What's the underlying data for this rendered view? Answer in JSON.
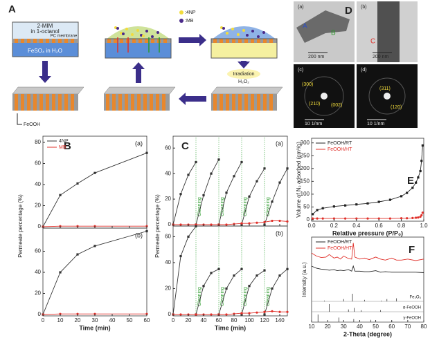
{
  "panel_a": {
    "label": "A",
    "solvent_top": "2-MIM",
    "solvent_top_2": "in 1-octanol",
    "membrane": "PC membrane",
    "solution_bottom": "FeSO₄ in H₂O",
    "legend_4np": ":4NP",
    "legend_mb": ":MB",
    "irradiation": "Irradiation",
    "oxidant": "H₂O₂",
    "product": "FeOOH"
  },
  "panel_d": {
    "label": "D",
    "images": [
      {
        "tag": "(a)",
        "scale": "200 nm",
        "marks": [
          "A",
          "B"
        ]
      },
      {
        "tag": "(b)",
        "scale": "200 nm",
        "marks": [
          "C"
        ]
      },
      {
        "tag": "(c)",
        "scale": "10 1/nm",
        "marks": [
          "(300)",
          "(210)",
          "(002)"
        ]
      },
      {
        "tag": "(d)",
        "scale": "10 1/nm",
        "marks": [
          "(311)",
          "(120)"
        ]
      }
    ]
  },
  "chart_data": [
    {
      "type": "line",
      "label": "B",
      "xlabel": "Time (min)",
      "ylabel": "Permeate percentage (%)",
      "legend": "top-left",
      "x": [
        0,
        10,
        20,
        30,
        60
      ],
      "xlim": [
        0,
        60
      ],
      "xticks": [
        0,
        10,
        20,
        30,
        40,
        50,
        60
      ],
      "subplots": [
        {
          "label": "(a)",
          "ylim": [
            0,
            80
          ],
          "yticks": [
            0,
            20,
            40,
            60,
            80
          ],
          "series": [
            {
              "name": "4NP",
              "color": "#333333",
              "values": [
                0,
                30,
                41,
                51,
                70
              ]
            },
            {
              "name": "MB",
              "color": "#e0302a",
              "values": [
                0,
                0.5,
                0.5,
                0.5,
                0.5
              ]
            }
          ]
        },
        {
          "label": "(b)",
          "ylim": [
            0,
            80
          ],
          "yticks": [
            0,
            20,
            40,
            60
          ],
          "series": [
            {
              "color": "#333333",
              "values": [
                0,
                40,
                57,
                65,
                79
              ]
            },
            {
              "color": "#e0302a",
              "values": [
                0,
                0.5,
                0.5,
                0.5,
                0.5
              ]
            }
          ]
        }
      ]
    },
    {
      "type": "line",
      "label": "C",
      "xlabel": "Time (min)",
      "ylabel": "Permeate percentage (%)",
      "x": [
        0,
        10,
        20,
        30,
        30,
        30,
        40,
        50,
        60,
        60,
        60,
        70,
        80,
        90,
        90,
        90,
        100,
        110,
        120,
        120,
        120,
        130,
        140,
        150
      ],
      "xlim": [
        0,
        150
      ],
      "xticks": [
        0,
        20,
        40,
        60,
        80,
        100,
        120,
        140
      ],
      "subplots": [
        {
          "label": "(a)",
          "ylim": [
            0,
            65
          ],
          "yticks": [
            0,
            20,
            40,
            60
          ],
          "annotations": [
            {
              "x": 30,
              "text": "Cleaning"
            },
            {
              "x": 60,
              "text": "Cleaning"
            },
            {
              "x": 90,
              "text": "Cleaning"
            },
            {
              "x": 120,
              "text": "Cleaning"
            }
          ],
          "series": [
            {
              "color": "#333333",
              "values": [
                0,
                24,
                39,
                49,
                null,
                0,
                23,
                40,
                51,
                null,
                0,
                25,
                38,
                49,
                null,
                0,
                22,
                34,
                44,
                null,
                0,
                18,
                33,
                44
              ]
            },
            {
              "color": "#e0302a",
              "values": [
                0,
                0,
                0,
                0,
                null,
                0,
                0,
                0,
                0,
                null,
                0,
                0,
                0.5,
                1,
                null,
                1,
                1,
                1.5,
                2,
                null,
                2,
                3,
                3,
                2.5
              ]
            }
          ]
        },
        {
          "label": "(b)",
          "ylim": [
            0,
            65
          ],
          "yticks": [
            0,
            20,
            40,
            60
          ],
          "annotations": [
            {
              "x": 30,
              "text": "Cleaning"
            },
            {
              "x": 60,
              "text": "Cleaning"
            },
            {
              "x": 90,
              "text": "Cleaning"
            },
            {
              "x": 120,
              "text": "Cleaning"
            }
          ],
          "series": [
            {
              "color": "#333333",
              "values": [
                0,
                45,
                60,
                68,
                null,
                0,
                22,
                32,
                35,
                null,
                0,
                20,
                30,
                35,
                null,
                0,
                22,
                30,
                34,
                null,
                0,
                20,
                30,
                35
              ]
            },
            {
              "color": "#e0302a",
              "values": [
                0,
                0,
                0,
                0,
                null,
                0,
                0,
                0,
                0,
                null,
                0,
                0,
                0.5,
                1,
                null,
                1,
                1,
                1.5,
                2,
                null,
                2,
                2.5,
                2,
                2
              ]
            }
          ]
        }
      ]
    },
    {
      "type": "line",
      "label": "E",
      "xlabel": "Relative pressure (P/P₀)",
      "ylabel": "Volume of N₂ adsorbed (cm³/g)",
      "legend": "top-left",
      "x": [
        0.01,
        0.05,
        0.1,
        0.2,
        0.3,
        0.4,
        0.5,
        0.6,
        0.7,
        0.8,
        0.85,
        0.9,
        0.93,
        0.95,
        0.97,
        0.98,
        0.99
      ],
      "xlim": [
        0,
        1
      ],
      "xticks": [
        {
          "value": 0,
          "label": "0.0"
        },
        0.2,
        0.4,
        0.6,
        0.8,
        {
          "value": 1,
          "label": "1.0"
        }
      ],
      "ylim": [
        0,
        310
      ],
      "yticks": [
        0,
        50,
        100,
        150,
        200,
        250,
        300
      ],
      "series": [
        {
          "name": "FeOOH/RT",
          "color": "#222222",
          "values": [
            22,
            38,
            45,
            52,
            56,
            60,
            64,
            70,
            78,
            92,
            105,
            125,
            145,
            165,
            190,
            230,
            290
          ]
        },
        {
          "name": "FeOOH/HT",
          "color": "#e0302a",
          "values": [
            5,
            5,
            5,
            5,
            5,
            5,
            5,
            5,
            5,
            6,
            6,
            7,
            8,
            9,
            12,
            18,
            28
          ]
        }
      ]
    },
    {
      "type": "line",
      "label": "F",
      "xlabel": "2-Theta (degree)",
      "ylabel": "Intensity (a.u.)",
      "legend": "top-left",
      "x": [
        10,
        13,
        16,
        19,
        21,
        24,
        26,
        28,
        30,
        33,
        35,
        36,
        37,
        40,
        43,
        46,
        50,
        53,
        56,
        60,
        63,
        66,
        70,
        75,
        80
      ],
      "xlim": [
        10,
        80
      ],
      "xticks": [
        10,
        20,
        30,
        40,
        50,
        60,
        70,
        80
      ],
      "ylim": [
        0,
        100
      ],
      "series": [
        {
          "name": "FeOOH/RT",
          "color": "#222222",
          "values": [
            52,
            48,
            46,
            45,
            44,
            45,
            43,
            44,
            43,
            45,
            42,
            52,
            42,
            42,
            41,
            41,
            43,
            40,
            41,
            40,
            40,
            40,
            40,
            40,
            39
          ]
        },
        {
          "name": "FeOOH/HT",
          "color": "#e0302a",
          "values": [
            78,
            72,
            69,
            70,
            75,
            68,
            70,
            66,
            72,
            67,
            66,
            98,
            70,
            66,
            68,
            65,
            70,
            66,
            64,
            68,
            64,
            64,
            66,
            63,
            66
          ]
        }
      ],
      "references": [
        {
          "name": "Fe₃O₄",
          "peaks": [
            18,
            30,
            35.5,
            43,
            53.5,
            57,
            63
          ],
          "heights": [
            10,
            30,
            100,
            20,
            10,
            30,
            40
          ]
        },
        {
          "name": "α-FeOOH",
          "peaks": [
            21,
            33,
            36.6,
            41,
            53
          ],
          "heights": [
            100,
            30,
            50,
            20,
            20
          ]
        },
        {
          "name": "γ-FeOOH",
          "peaks": [
            14,
            27,
            36.3,
            47,
            60
          ],
          "heights": [
            100,
            60,
            40,
            30,
            20
          ]
        }
      ]
    }
  ]
}
